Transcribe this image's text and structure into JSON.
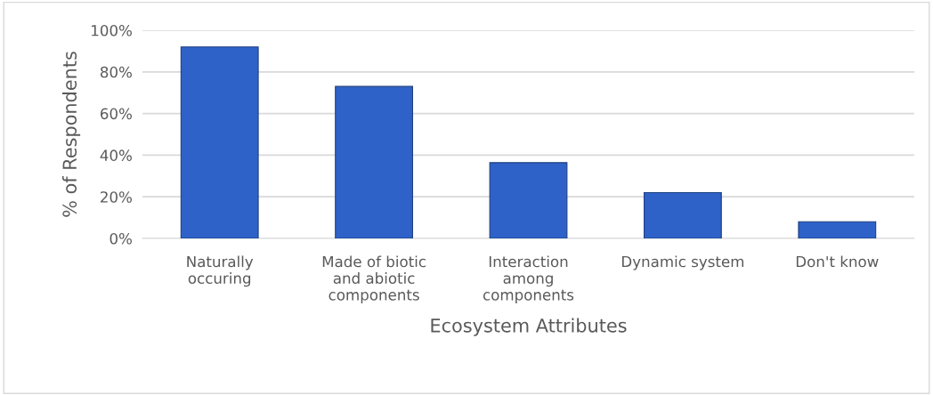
{
  "chart_data": {
    "type": "bar",
    "xlabel": "Ecosystem Attributes",
    "ylabel": "% of Respondents",
    "categories": [
      "Naturally\noccuring",
      "Made of biotic\nand abiotic\ncomponents",
      "Interaction\namong\ncomponents",
      "Dynamic system",
      "Don't know"
    ],
    "values": [
      92,
      73,
      36.4,
      22,
      8
    ],
    "color": "#2e62c8",
    "ylim": [
      0,
      100
    ],
    "yticks": [
      {
        "value": 0,
        "label": "0%"
      },
      {
        "value": 20,
        "label": "20%"
      },
      {
        "value": 40,
        "label": "40%"
      },
      {
        "value": 60,
        "label": "60%"
      },
      {
        "value": 80,
        "label": "80%"
      },
      {
        "value": 100,
        "label": "100%"
      }
    ],
    "grid": "y"
  }
}
